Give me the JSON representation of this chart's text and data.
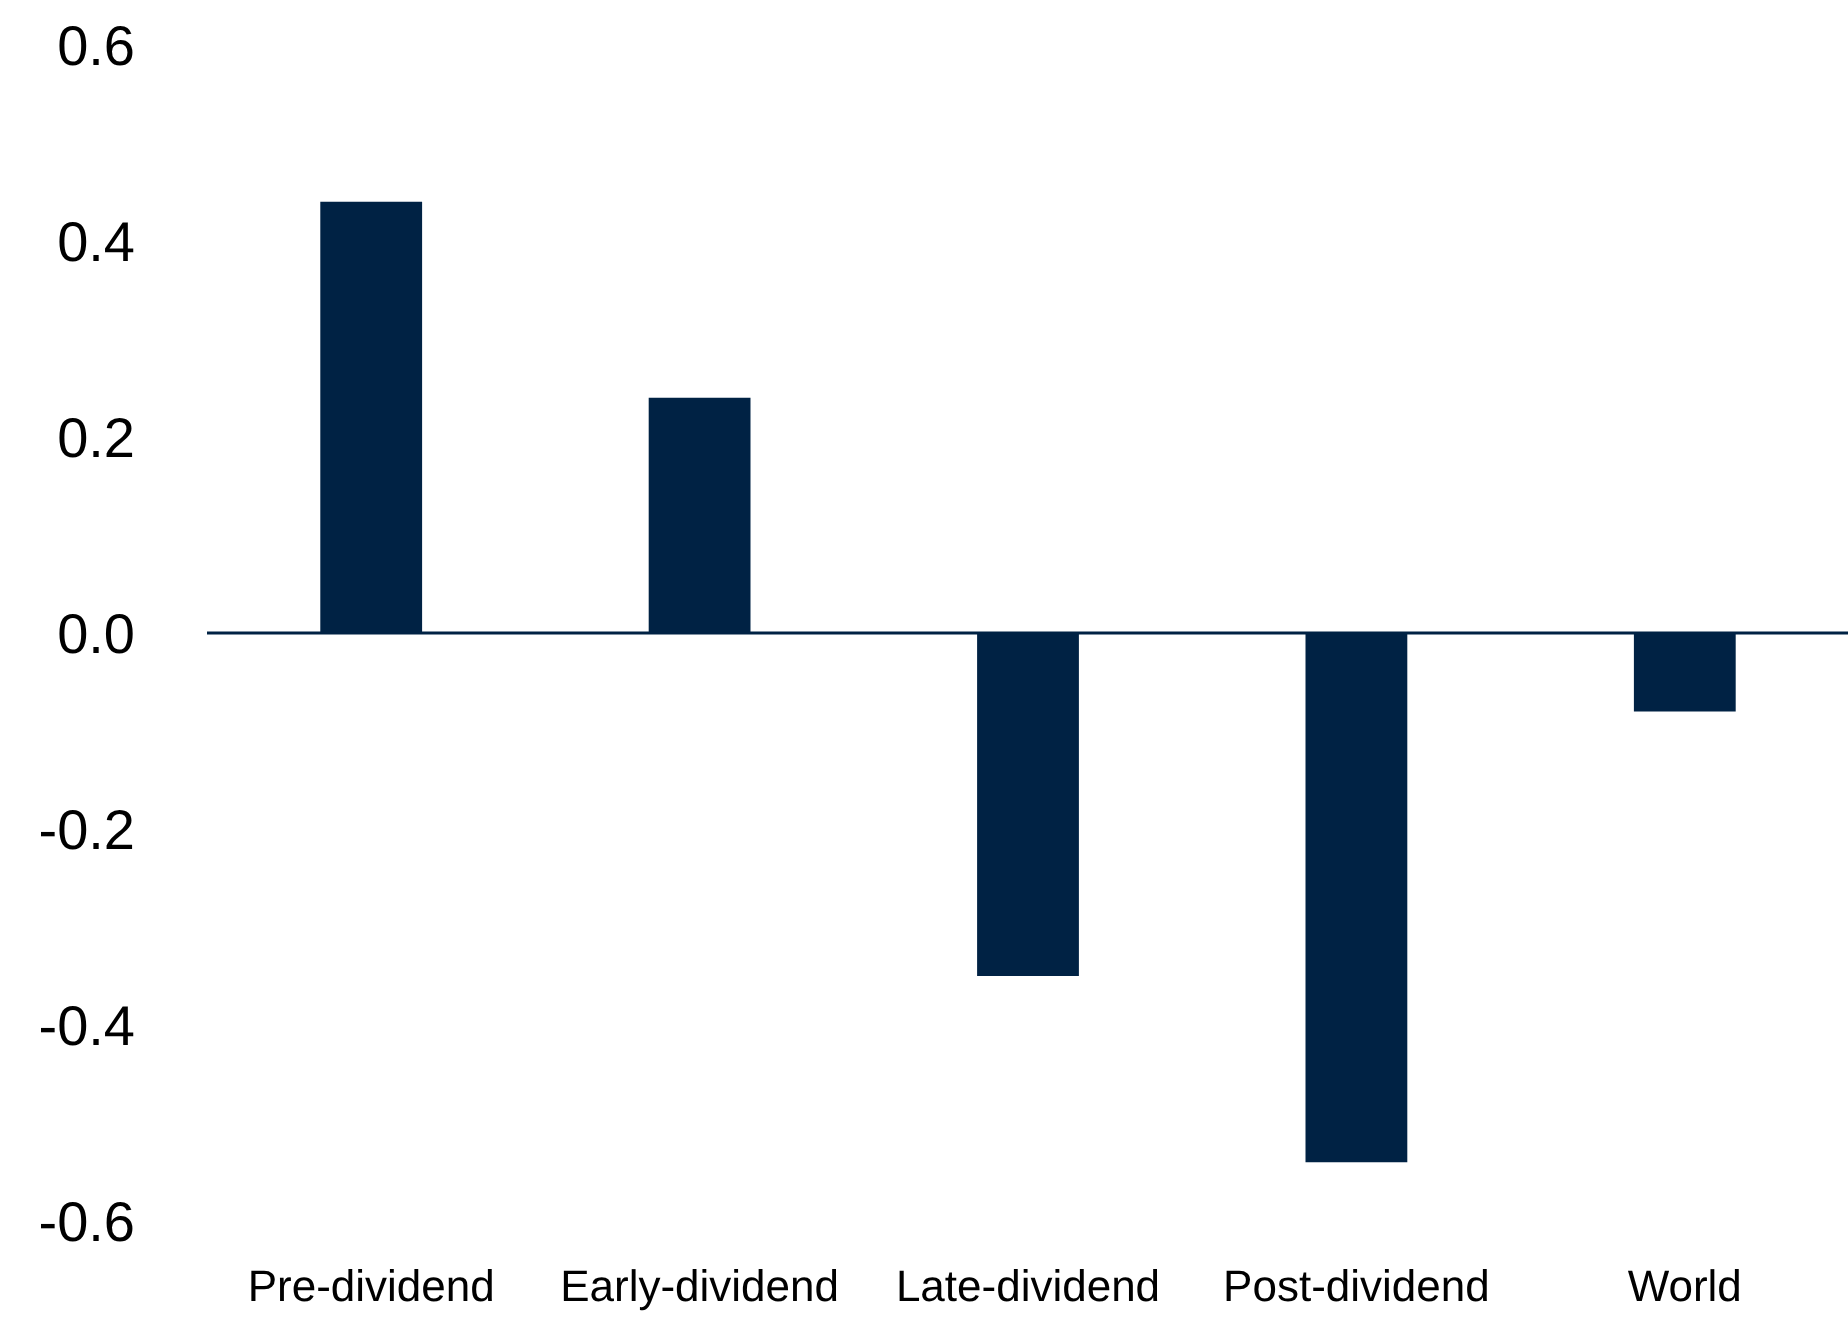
{
  "chart_data": {
    "type": "bar",
    "categories": [
      "Pre-dividend",
      "Early-dividend",
      "Late-dividend",
      "Post-dividend",
      "World"
    ],
    "values": [
      0.44,
      0.24,
      -0.35,
      -0.54,
      -0.08
    ],
    "color": "#002244",
    "ylim": [
      -0.6,
      0.6
    ],
    "yticks": [
      {
        "value": -0.6,
        "label": "-0.6"
      },
      {
        "value": -0.4,
        "label": "-0.4"
      },
      {
        "value": -0.2,
        "label": "-0.2"
      },
      {
        "value": 0,
        "label": "0.0"
      },
      {
        "value": 0.2,
        "label": "0.2"
      },
      {
        "value": 0.4,
        "label": "0.4"
      },
      {
        "value": 0.6,
        "label": "0.6"
      }
    ],
    "ref_lines": [
      {
        "axis": "y",
        "value": 0,
        "color": "#002244"
      }
    ],
    "grid": false
  }
}
